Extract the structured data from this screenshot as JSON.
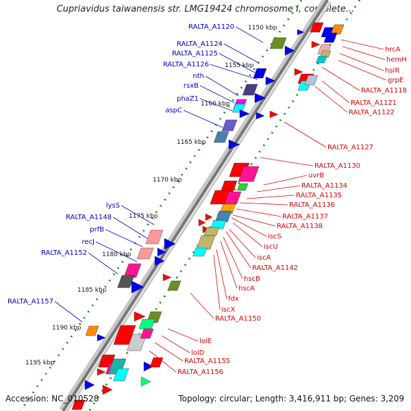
{
  "title": "Cupriavidus taiwanensis str. LMG19424 chromosome I, complete...",
  "accession": "Accession: NC_010528",
  "topology": "Topology: circular; Length: 3,416,911 bp; Genes: 3,209",
  "colors": {
    "minus_label": "#0000cc",
    "plus_label": "#dd0000",
    "tick": "#228822",
    "backbone": "#888888"
  },
  "kbp_ticks": [
    "1150 kbp",
    "1155 kbp",
    "1160 kbp",
    "1165 kbp",
    "1170 kbp",
    "1175 kbp",
    "1180 kbp",
    "1185 kbp",
    "1190 kbp",
    "1195 kbp"
  ],
  "left_labels": [
    "RALTA_A1120",
    "RALTA_A1124",
    "RALTA_A1125",
    "RALTA_A1126",
    "nth",
    "rsxB",
    "phaZ1",
    "aspC",
    "lysS",
    "RALTA_A1148",
    "prfB",
    "recJ",
    "RALTA_A1152",
    "RALTA_A1157"
  ],
  "right_labels": [
    "hrcA",
    "hemH",
    "hslR",
    "grpE",
    "RALTA_A1118",
    "RALTA_A1121",
    "RALTA_A1122",
    "RALTA_A1127",
    "RALTA_A1130",
    "uvrB",
    "RALTA_A1134",
    "RALTA_A1135",
    "RALTA_A1136",
    "RALTA_A1137",
    "RALTA_A1138",
    "iscS",
    "iscU",
    "iscA",
    "RALTA_A1142",
    "hscB",
    "hscA",
    "fdx",
    "iscX",
    "RALTA_A1150",
    "lolE",
    "lolD",
    "RALTA_A1155",
    "RALTA_A1156"
  ]
}
